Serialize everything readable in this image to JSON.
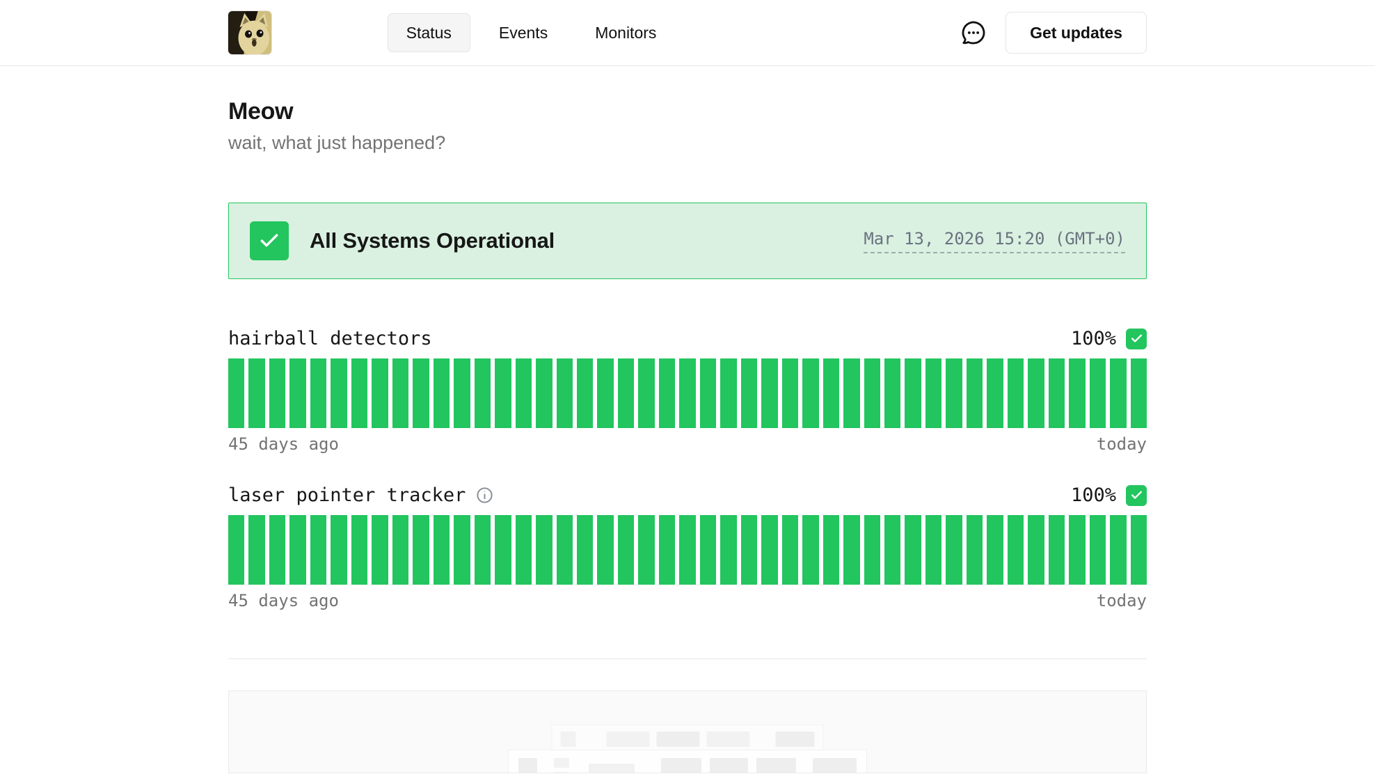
{
  "header": {
    "logo": "shocked-cat-avatar",
    "nav": [
      {
        "label": "Status",
        "active": true
      },
      {
        "label": "Events",
        "active": false
      },
      {
        "label": "Monitors",
        "active": false
      }
    ],
    "chat_icon": "speech-bubble-with-dots",
    "get_updates_label": "Get updates"
  },
  "page": {
    "title": "Meow",
    "subtitle": "wait, what just happened?"
  },
  "status_banner": {
    "icon": "green-check-square",
    "label": "All Systems Operational",
    "timestamp": "Mar 13, 2026 15:20 (GMT+0)"
  },
  "monitors": [
    {
      "name": "hairball detectors",
      "has_info_icon": false,
      "uptime": "100%",
      "status_icon": "green-check-square",
      "range_start": "45 days ago",
      "range_end": "today",
      "bars": {
        "count": 45,
        "all_status": "operational",
        "color": "#22c55e"
      }
    },
    {
      "name": "laser pointer tracker",
      "has_info_icon": true,
      "uptime": "100%",
      "status_icon": "green-check-square",
      "range_start": "45 days ago",
      "range_end": "today",
      "bars": {
        "count": 45,
        "all_status": "operational",
        "color": "#22c55e"
      }
    }
  ],
  "colors": {
    "operational_green": "#22c55e",
    "banner_background": "#daf1e1",
    "muted_text": "#737373"
  }
}
